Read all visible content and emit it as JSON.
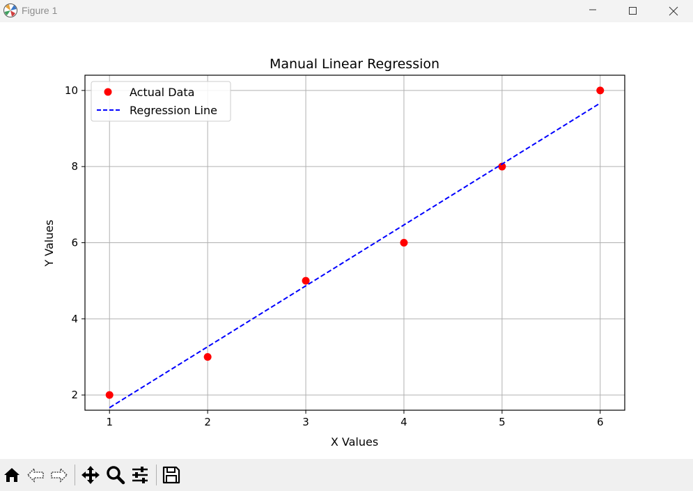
{
  "window": {
    "title": "Figure 1",
    "icons": {
      "app": "matplotlib-logo-icon",
      "minimize": "minimize-icon",
      "maximize": "maximize-icon",
      "close": "close-icon"
    }
  },
  "toolbar": {
    "buttons": [
      {
        "name": "home-icon"
      },
      {
        "name": "back-icon"
      },
      {
        "name": "forward-icon"
      },
      {
        "name": "pan-icon"
      },
      {
        "name": "zoom-icon"
      },
      {
        "name": "configure-subplots-icon"
      },
      {
        "name": "save-icon"
      }
    ]
  },
  "chart_data": {
    "type": "scatter",
    "title": "Manual Linear Regression",
    "xlabel": "X Values",
    "ylabel": "Y Values",
    "xlim": [
      0.75,
      6.25
    ],
    "ylim": [
      1.6,
      10.4
    ],
    "xticks": [
      1,
      2,
      3,
      4,
      5,
      6
    ],
    "yticks": [
      2,
      4,
      6,
      8,
      10
    ],
    "grid": true,
    "legend_position": "top-left",
    "series": [
      {
        "name": "Actual Data",
        "kind": "scatter",
        "color": "#ff0000",
        "x": [
          1,
          2,
          3,
          4,
          5,
          6
        ],
        "y": [
          2,
          3,
          5,
          6,
          8,
          10
        ]
      },
      {
        "name": "Regression Line",
        "kind": "line",
        "style": "dashed",
        "color": "#0000ff",
        "x": [
          1,
          6
        ],
        "y": [
          1.667,
          9.667
        ]
      }
    ]
  }
}
